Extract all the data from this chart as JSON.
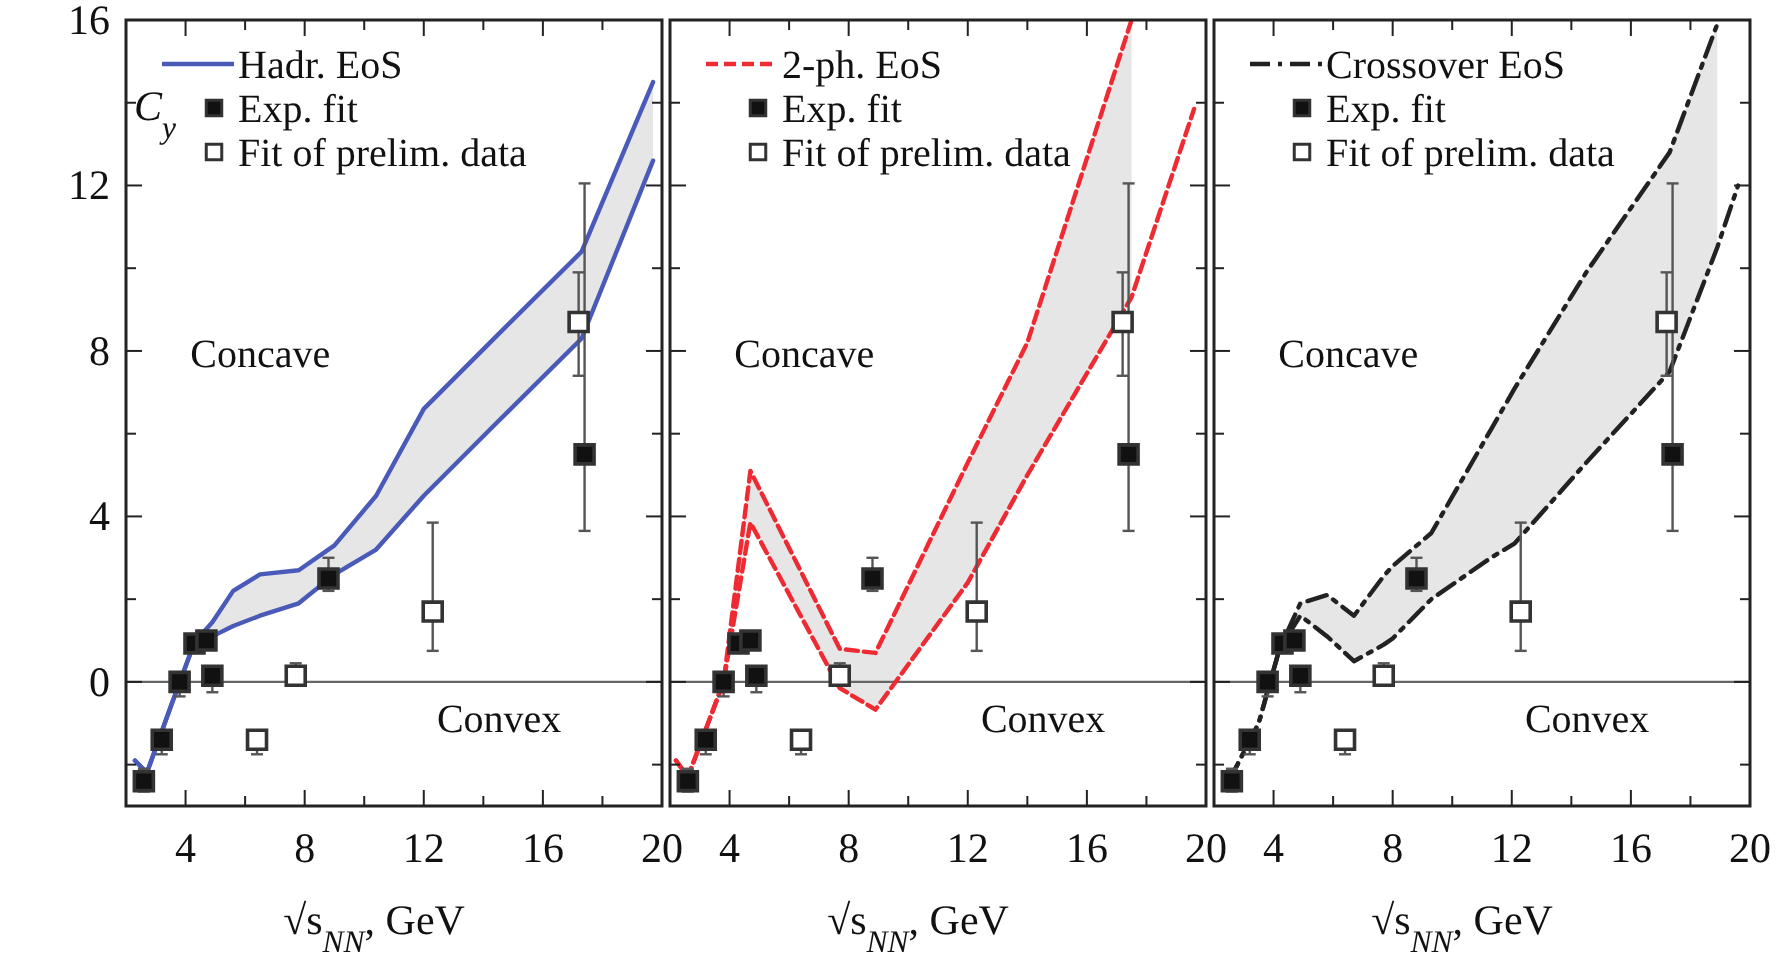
{
  "chart_data": [
    {
      "type": "line",
      "xlabel": "√s$_{NN}$, GeV",
      "ylabel": "C$_{y}$",
      "xlim": [
        2,
        20
      ],
      "ylim": [
        -3,
        16
      ],
      "xticks": [
        4,
        {
          "value": 6,
          "label": null
        },
        8,
        {
          "value": 10,
          "label": null
        },
        12,
        {
          "value": 14,
          "label": null
        },
        16,
        {
          "value": 18,
          "label": null
        },
        20
      ],
      "yticks": [
        {
          "value": -2,
          "label": null
        },
        0,
        {
          "value": 2,
          "label": null
        },
        4,
        {
          "value": 6,
          "label": null
        },
        8,
        {
          "value": 10,
          "label": null
        },
        12,
        {
          "value": 14,
          "label": null
        },
        16
      ],
      "legend": "top left",
      "annotations": [
        "Concave",
        "Convex"
      ],
      "ref_lines": [
        {
          "axis": "y",
          "value": 0,
          "color": "#666666"
        }
      ],
      "series": [
        {
          "name": "Hadr. EoS",
          "type": "line",
          "color": "#4a5ab8",
          "line_style": "solid",
          "x": [
            2.3,
            2.7,
            3.5,
            4.3,
            4.9,
            5.6,
            6.5,
            7.8,
            9,
            10.4,
            12,
            14.5,
            17.3,
            19.7
          ],
          "values": [
            -1.9,
            -2.2,
            -0.6,
            0.96,
            1.44,
            2.2,
            2.6,
            2.7,
            3.3,
            4.5,
            6.6,
            8.4,
            10.4,
            14.5
          ],
          "upper": [
            -1.9,
            -2.2,
            -0.6,
            0.96,
            1.44,
            2.2,
            2.6,
            2.7,
            3.3,
            4.5,
            6.6,
            8.4,
            10.4,
            14.5
          ],
          "lower": [
            -1.9,
            -2.2,
            -0.6,
            0.96,
            1.1,
            1.35,
            1.6,
            1.9,
            2.6,
            3.2,
            4.5,
            6.3,
            8.3,
            12.6
          ]
        },
        {
          "type": "line",
          "color": "#4a5ab8",
          "line_style": "solid",
          "x": [
            2.3,
            2.7,
            3.5,
            4.3,
            4.9,
            5.6,
            6.5,
            7.8,
            9,
            10.4,
            12,
            14.5,
            17.3,
            19.7
          ],
          "values": [
            -1.9,
            -2.2,
            -0.6,
            0.96,
            1.1,
            1.35,
            1.6,
            1.9,
            2.6,
            3.2,
            4.5,
            6.3,
            8.3,
            12.6
          ]
        },
        {
          "name": "Exp. fit",
          "type": "scatter",
          "marker": "square",
          "color": "#111111",
          "x": [
            2.6,
            3.2,
            3.8,
            4.3,
            4.7,
            4.9,
            8.8,
            17.4
          ],
          "values": [
            -2.4,
            -1.4,
            0,
            0.93,
            1.0,
            0.15,
            2.5,
            5.5
          ],
          "errors": [
            [
              -2.65,
              -2.1
            ],
            [
              -1.75,
              -1.2
            ],
            [
              -0.35,
              0.05
            ],
            null,
            null,
            [
              -0.25,
              0.35
            ],
            [
              2.2,
              3.0
            ],
            [
              3.65,
              12.05
            ]
          ]
        },
        {
          "name": "Fit of prelim. data",
          "type": "scatter",
          "marker": "square",
          "color": "#ffffff",
          "x": [
            6.4,
            7.7,
            12.3,
            17.2
          ],
          "values": [
            -1.4,
            0.15,
            1.7,
            8.7
          ],
          "errors": [
            [
              -1.75,
              -1.2
            ],
            [
              -0.05,
              0.45
            ],
            [
              0.75,
              3.85
            ],
            [
              7.4,
              9.9
            ]
          ]
        }
      ]
    },
    {
      "type": "line",
      "xlabel": "√s$_{NN}$, GeV",
      "xlim": [
        2,
        20
      ],
      "ylim": [
        -3,
        16
      ],
      "tick_labels": "x",
      "xticks": [
        4,
        {
          "value": 6,
          "label": null
        },
        8,
        {
          "value": 10,
          "label": null
        },
        12,
        {
          "value": 14,
          "label": null
        },
        16,
        {
          "value": 18,
          "label": null
        },
        20
      ],
      "yticks": [
        {
          "value": -2,
          "label": null
        },
        0,
        {
          "value": 2,
          "label": null
        },
        4,
        {
          "value": 6,
          "label": null
        },
        8,
        {
          "value": 10,
          "label": null
        },
        12,
        {
          "value": 14,
          "label": null
        },
        16
      ],
      "legend": "top left",
      "annotations": [
        "Concave",
        "Convex"
      ],
      "ref_lines": [
        {
          "axis": "y",
          "value": 0,
          "color": "#666666"
        }
      ],
      "series": [
        {
          "name": "2-ph. EoS",
          "type": "line",
          "color": "#ee2a33",
          "line_style": "dashed",
          "x": [
            2.2,
            2.6,
            3.8,
            4.7,
            7.7,
            8.9,
            12,
            14,
            17.5
          ],
          "values": [
            -1.9,
            -2.3,
            0,
            5.1,
            0.8,
            0.7,
            5.3,
            8.2,
            16
          ],
          "upper": [
            -1.9,
            -2.3,
            0,
            5.1,
            0.8,
            0.7,
            5.3,
            8.2,
            16
          ],
          "lower": [
            -1.9,
            -2.3,
            0,
            3.85,
            -0.15,
            -0.67,
            2.4,
            5.0,
            9.3
          ]
        },
        {
          "type": "line",
          "color": "#ee2a33",
          "line_style": "dashed",
          "x": [
            2.2,
            2.6,
            3.8,
            4.7,
            7.7,
            8.9,
            12,
            14,
            17.5,
            19.6
          ],
          "values": [
            -1.9,
            -2.3,
            0,
            3.85,
            -0.15,
            -0.67,
            2.4,
            5.0,
            9.3,
            13.85
          ]
        },
        {
          "name": "Exp. fit",
          "type": "scatter",
          "marker": "square",
          "color": "#111111",
          "x": [
            2.6,
            3.2,
            3.8,
            4.3,
            4.7,
            4.9,
            8.8,
            17.4
          ],
          "values": [
            -2.4,
            -1.4,
            0,
            0.93,
            1.0,
            0.15,
            2.5,
            5.5
          ],
          "errors": [
            [
              -2.65,
              -2.1
            ],
            [
              -1.75,
              -1.2
            ],
            [
              -0.35,
              0.05
            ],
            null,
            null,
            [
              -0.25,
              0.35
            ],
            [
              2.2,
              3.0
            ],
            [
              3.65,
              12.05
            ]
          ]
        },
        {
          "name": "Fit of prelim. data",
          "type": "scatter",
          "marker": "square",
          "color": "#ffffff",
          "x": [
            6.4,
            7.7,
            12.3,
            17.2
          ],
          "values": [
            -1.4,
            0.15,
            1.7,
            8.7
          ],
          "errors": [
            [
              -1.75,
              -1.2
            ],
            [
              -0.05,
              0.45
            ],
            [
              0.75,
              3.85
            ],
            [
              7.4,
              9.9
            ]
          ]
        }
      ]
    },
    {
      "type": "line",
      "xlabel": "√s$_{NN}$, GeV",
      "xlim": [
        2,
        20
      ],
      "ylim": [
        -3,
        16
      ],
      "tick_labels": "x",
      "xticks": [
        4,
        {
          "value": 6,
          "label": null
        },
        8,
        {
          "value": 10,
          "label": null
        },
        12,
        {
          "value": 14,
          "label": null
        },
        16,
        {
          "value": 18,
          "label": null
        },
        20
      ],
      "yticks": [
        {
          "value": -2,
          "label": null
        },
        0,
        {
          "value": 2,
          "label": null
        },
        4,
        {
          "value": 6,
          "label": null
        },
        8,
        {
          "value": 10,
          "label": null
        },
        12,
        {
          "value": 14,
          "label": null
        },
        16
      ],
      "legend": "top left",
      "annotations": [
        "Concave",
        "Convex"
      ],
      "ref_lines": [
        {
          "axis": "y",
          "value": 0,
          "color": "#666666"
        }
      ],
      "series": [
        {
          "name": "Crossover EoS",
          "type": "line",
          "color": "#222222",
          "line_style": "dashdot",
          "x": [
            2.5,
            3.5,
            4.2,
            4.9,
            5.8,
            6.7,
            7.7,
            8,
            9.3,
            11.3,
            12.1,
            14.5,
            17.3,
            18.9
          ],
          "values": [
            -2.4,
            -1,
            0.8,
            1.9,
            2.1,
            1.6,
            2.56,
            2.8,
            3.6,
            6.1,
            7.1,
            9.9,
            12.8,
            15.9
          ],
          "upper": [
            -2.4,
            -1,
            0.8,
            1.9,
            2.1,
            1.6,
            2.56,
            2.8,
            3.6,
            6.1,
            7.1,
            9.9,
            12.8,
            15.9
          ],
          "lower": [
            -2.4,
            -1,
            0.8,
            1.6,
            1.1,
            0.5,
            0.9,
            1.05,
            2.0,
            3.0,
            3.35,
            5.3,
            7.5,
            10.5
          ]
        },
        {
          "type": "line",
          "color": "#222222",
          "line_style": "dashdot",
          "x": [
            2.5,
            3.5,
            4.2,
            4.9,
            5.8,
            6.7,
            7.7,
            8,
            9.3,
            11.3,
            12.1,
            14.5,
            17.3,
            18.9,
            19.6
          ],
          "values": [
            -2.4,
            -1,
            0.8,
            1.6,
            1.1,
            0.5,
            0.9,
            1.05,
            2.0,
            3.0,
            3.35,
            5.3,
            7.5,
            10.5,
            12
          ]
        },
        {
          "name": "Exp. fit",
          "type": "scatter",
          "marker": "square",
          "color": "#111111",
          "x": [
            2.6,
            3.2,
            3.8,
            4.3,
            4.7,
            4.9,
            8.8,
            17.4
          ],
          "values": [
            -2.4,
            -1.4,
            0,
            0.93,
            1.0,
            0.15,
            2.5,
            5.5
          ],
          "errors": [
            [
              -2.65,
              -2.1
            ],
            [
              -1.75,
              -1.2
            ],
            [
              -0.35,
              0.05
            ],
            null,
            null,
            [
              -0.25,
              0.35
            ],
            [
              2.2,
              3.0
            ],
            [
              3.65,
              12.05
            ]
          ]
        },
        {
          "name": "Fit of prelim. data",
          "type": "scatter",
          "marker": "square",
          "color": "#ffffff",
          "x": [
            6.4,
            7.7,
            12.3,
            17.2
          ],
          "values": [
            -1.4,
            0.15,
            1.7,
            8.7
          ],
          "errors": [
            [
              -1.75,
              -1.2
            ],
            [
              -0.05,
              0.45
            ],
            [
              0.75,
              3.85
            ],
            [
              7.4,
              9.9
            ]
          ]
        }
      ]
    }
  ]
}
